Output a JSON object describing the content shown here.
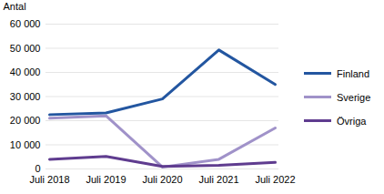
{
  "chart_data": {
    "type": "line",
    "y_label": "Antal",
    "categories": [
      "Juli 2018",
      "Juli 2019",
      "Juli 2020",
      "Juli 2021",
      "Juli 2022"
    ],
    "series": [
      {
        "name": "Finland",
        "color": "#2356a0",
        "values": [
          22500,
          23200,
          29000,
          49300,
          35000
        ]
      },
      {
        "name": "Sverige",
        "color": "#a092c9",
        "values": [
          21000,
          22000,
          800,
          4000,
          17000
        ]
      },
      {
        "name": "Övriga",
        "color": "#5f3c8f",
        "values": [
          4000,
          5200,
          1000,
          1500,
          2700
        ]
      }
    ],
    "ylim": [
      0,
      60000
    ],
    "yticks": [
      0,
      {
        "value": 10000,
        "label": "10 000"
      },
      {
        "value": 20000,
        "label": "20 000"
      },
      {
        "value": 30000,
        "label": "30 000"
      },
      {
        "value": 40000,
        "label": "40 000"
      },
      {
        "value": 50000,
        "label": "50 000"
      },
      {
        "value": 60000,
        "label": "60 000"
      }
    ],
    "grid": true,
    "legend": "right"
  }
}
